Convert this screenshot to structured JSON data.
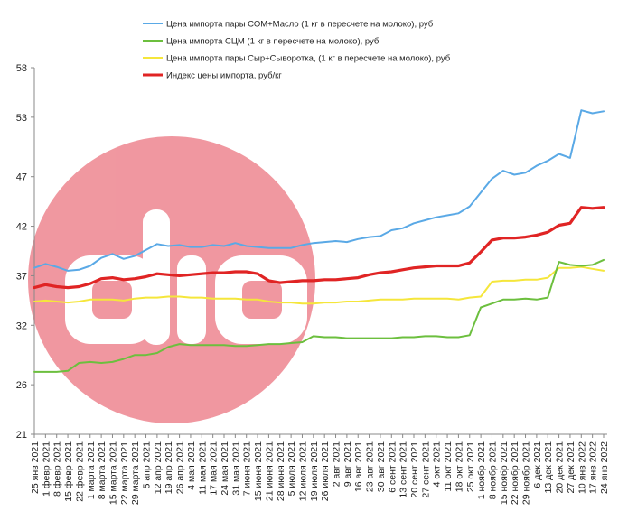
{
  "chart_data": {
    "type": "line",
    "title": "",
    "xlabel": "",
    "ylabel": "",
    "ylim": [
      21,
      58
    ],
    "y_ticks": [
      21,
      26,
      32,
      37,
      42,
      47,
      53,
      58
    ],
    "grid": false,
    "legend_position": "top",
    "categories": [
      "25 янв 2021",
      "1 февр 2021",
      "8 февр 2021",
      "15 февр 2021",
      "22 февр 2021",
      "1 марта 2021",
      "8 марта 2021",
      "15 марта 2021",
      "22 марта 2021",
      "29 марта 2021",
      "5 апр 2021",
      "12 апр 2021",
      "19 апр 2021",
      "26 апр 2021",
      "4 мая 2021",
      "11 мая 2021",
      "17 мая 2021",
      "24 мая 2021",
      "31 мая 2021",
      "7 июня 2021",
      "15 июня 2021",
      "21 июня 2021",
      "28 июня 2021",
      "5 июля 2021",
      "12 июля 2021",
      "19 июля 2021",
      "26 июля 2021",
      "2 авг 2021",
      "9 авг 2021",
      "16 авг 2021",
      "23 авг 2021",
      "30 авг 2021",
      "6 сент 2021",
      "13 сент 2021",
      "20 сент 2021",
      "27 сент 2021",
      "4 окт 2021",
      "11 окт 2021",
      "18 окт 2021",
      "25 окт 2021",
      "1 ноябр 2021",
      "8 ноябр 2021",
      "15 ноябр 2021",
      "22 ноябр 2021",
      "29 ноябр 2021",
      "6 дек 2021",
      "13 дек 2021",
      "20 дек 2021",
      "27 дек 2021",
      "10 янв 2022",
      "17 янв 2022",
      "24 янв 2022"
    ],
    "series": [
      {
        "name": "Цена импорта пары СОМ+Масло  (1 кг в пересчете на молоко), руб",
        "color": "#5aa9e6",
        "width": 2,
        "values": [
          37.8,
          38.2,
          37.9,
          37.5,
          37.6,
          38.0,
          38.8,
          39.2,
          38.7,
          39.0,
          39.6,
          40.2,
          40.0,
          40.1,
          39.9,
          39.9,
          40.1,
          40.0,
          40.3,
          40.0,
          39.9,
          39.8,
          39.8,
          39.8,
          40.1,
          40.3,
          40.4,
          40.5,
          40.4,
          40.7,
          40.9,
          41.0,
          41.6,
          41.8,
          42.3,
          42.6,
          42.9,
          43.1,
          43.3,
          44.0,
          45.4,
          46.8,
          47.6,
          47.2,
          47.4,
          48.1,
          48.6,
          49.3,
          48.9,
          53.7,
          53.4,
          53.6
        ]
      },
      {
        "name": "Цена импорта СЦМ  (1 кг в пересчете на молоко), руб",
        "color": "#6cbf3e",
        "width": 2,
        "values": [
          27.3,
          27.3,
          27.3,
          27.4,
          28.2,
          28.3,
          28.2,
          28.3,
          28.6,
          29.0,
          29.0,
          29.2,
          29.8,
          30.1,
          30.0,
          30.0,
          30.0,
          30.0,
          29.9,
          29.9,
          30.0,
          30.1,
          30.1,
          30.2,
          30.3,
          30.9,
          30.8,
          30.8,
          30.7,
          30.7,
          30.7,
          30.7,
          30.7,
          30.8,
          30.8,
          30.9,
          30.9,
          30.8,
          30.8,
          31.0,
          33.8,
          34.2,
          34.6,
          34.6,
          34.7,
          34.6,
          34.8,
          38.4,
          38.1,
          38.0,
          38.1,
          38.6
        ]
      },
      {
        "name": "Цена импорта пары Сыр+Сыворотка,  (1 кг в пересчете на молоко), руб",
        "color": "#f5e63b",
        "width": 2,
        "values": [
          34.4,
          34.5,
          34.4,
          34.3,
          34.4,
          34.6,
          34.6,
          34.6,
          34.5,
          34.7,
          34.8,
          34.8,
          34.9,
          34.9,
          34.8,
          34.8,
          34.7,
          34.7,
          34.7,
          34.6,
          34.6,
          34.4,
          34.3,
          34.3,
          34.2,
          34.2,
          34.3,
          34.3,
          34.4,
          34.4,
          34.5,
          34.6,
          34.6,
          34.6,
          34.7,
          34.7,
          34.7,
          34.7,
          34.6,
          34.8,
          34.9,
          36.4,
          36.5,
          36.5,
          36.6,
          36.6,
          36.8,
          37.8,
          37.8,
          37.9,
          37.7,
          37.5
        ]
      },
      {
        "name": "Индекс цены импорта, руб/кг",
        "color": "#e02424",
        "width": 3.2,
        "values": [
          35.8,
          36.1,
          35.9,
          35.8,
          35.9,
          36.2,
          36.7,
          36.8,
          36.6,
          36.7,
          36.9,
          37.2,
          37.1,
          37.0,
          37.1,
          37.2,
          37.3,
          37.3,
          37.4,
          37.4,
          37.2,
          36.5,
          36.3,
          36.4,
          36.5,
          36.5,
          36.6,
          36.6,
          36.7,
          36.8,
          37.1,
          37.3,
          37.4,
          37.6,
          37.8,
          37.9,
          38.0,
          38.0,
          38.0,
          38.3,
          39.4,
          40.6,
          40.8,
          40.8,
          40.9,
          41.1,
          41.4,
          42.1,
          42.3,
          43.9,
          43.8,
          43.9
        ]
      }
    ]
  },
  "watermark": {
    "color": "#ef8f98"
  }
}
